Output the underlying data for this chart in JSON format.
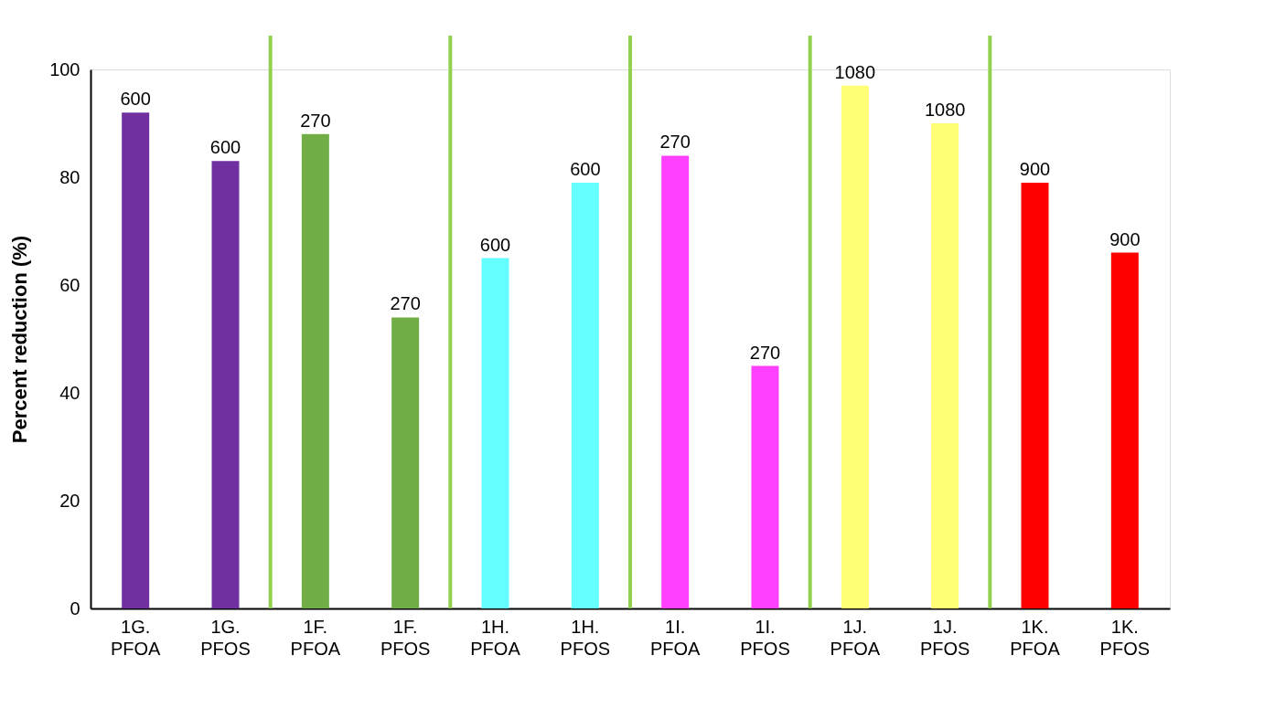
{
  "chart_data": {
    "type": "bar",
    "ylabel": "Percent reduction (%)",
    "categories": [
      "1G. PFOA",
      "1G. PFOS",
      "1F. PFOA",
      "1F. PFOS",
      "1H. PFOA",
      "1H. PFOS",
      "1I. PFOA",
      "1I. PFOS",
      "1J. PFOA",
      "1J. PFOS",
      "1K. PFOA",
      "1K. PFOS"
    ],
    "values": [
      92,
      83,
      88,
      54,
      65,
      79,
      84,
      45,
      97,
      90,
      79,
      66
    ],
    "colors": [
      "#7030a0",
      "#7030a0",
      "#70ad47",
      "#70ad47",
      "#66ffff",
      "#66ffff",
      "#ff40ff",
      "#ff40ff",
      "#ffff75",
      "#ffff75",
      "#ff0000",
      "#ff0000"
    ],
    "ylim": [
      0,
      100
    ],
    "yticks": [
      0,
      20,
      40,
      60,
      80,
      100
    ],
    "annotations": [
      {
        "text": "600",
        "x": "1G. PFOA",
        "y": 92
      },
      {
        "text": "600",
        "x": "1G. PFOS",
        "y": 83
      },
      {
        "text": "270",
        "x": "1F. PFOA",
        "y": 88
      },
      {
        "text": "270",
        "x": "1F. PFOS",
        "y": 54
      },
      {
        "text": "600",
        "x": "1H. PFOA",
        "y": 65
      },
      {
        "text": "600",
        "x": "1H. PFOS",
        "y": 79
      },
      {
        "text": "270",
        "x": "1I. PFOA",
        "y": 84
      },
      {
        "text": "270",
        "x": "1I. PFOS",
        "y": 45
      },
      {
        "text": "1080",
        "x": "1J. PFOA",
        "y": 97
      },
      {
        "text": "1080",
        "x": "1J. PFOS",
        "y": 90
      },
      {
        "text": "900",
        "x": "1K. PFOA",
        "y": 79
      },
      {
        "text": "900",
        "x": "1K. PFOS",
        "y": 66
      }
    ]
  }
}
